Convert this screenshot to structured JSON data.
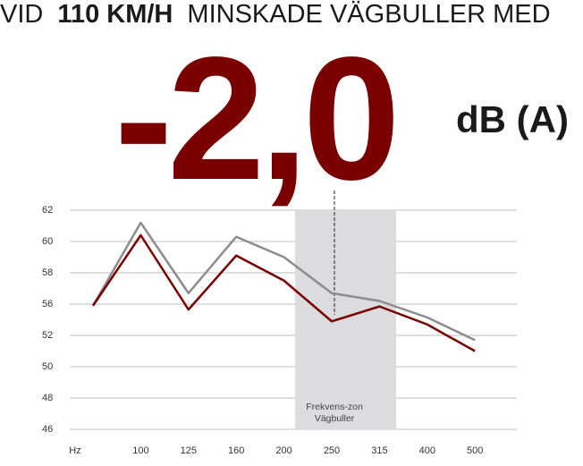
{
  "headline": {
    "pre": "VID",
    "bold": "110 KM/H",
    "post": "MINSKADE VÄGBULLER MED"
  },
  "big_number": "-2,0",
  "unit": "dB (A)",
  "chart_data": {
    "type": "line",
    "x_label": "Hz",
    "categories": [
      null,
      "100",
      "125",
      "160",
      "200",
      "250",
      "315",
      "400",
      "500"
    ],
    "series": [
      {
        "color": "#8c8c8c",
        "values": [
          55.8,
          61.2,
          56.7,
          60.3,
          59.0,
          56.7,
          56.2,
          54.3,
          51.7
        ]
      },
      {
        "color": "#7a0000",
        "values": [
          55.8,
          60.4,
          55.3,
          59.1,
          57.5,
          53.8,
          55.7,
          53.4,
          51.0
        ]
      }
    ],
    "ylim": [
      46,
      62
    ],
    "yticks": [
      62,
      60,
      58,
      56,
      52,
      50,
      48,
      46
    ],
    "grid": true,
    "annotation": [
      "Frekvens-zon",
      "Vägbuller"
    ]
  }
}
